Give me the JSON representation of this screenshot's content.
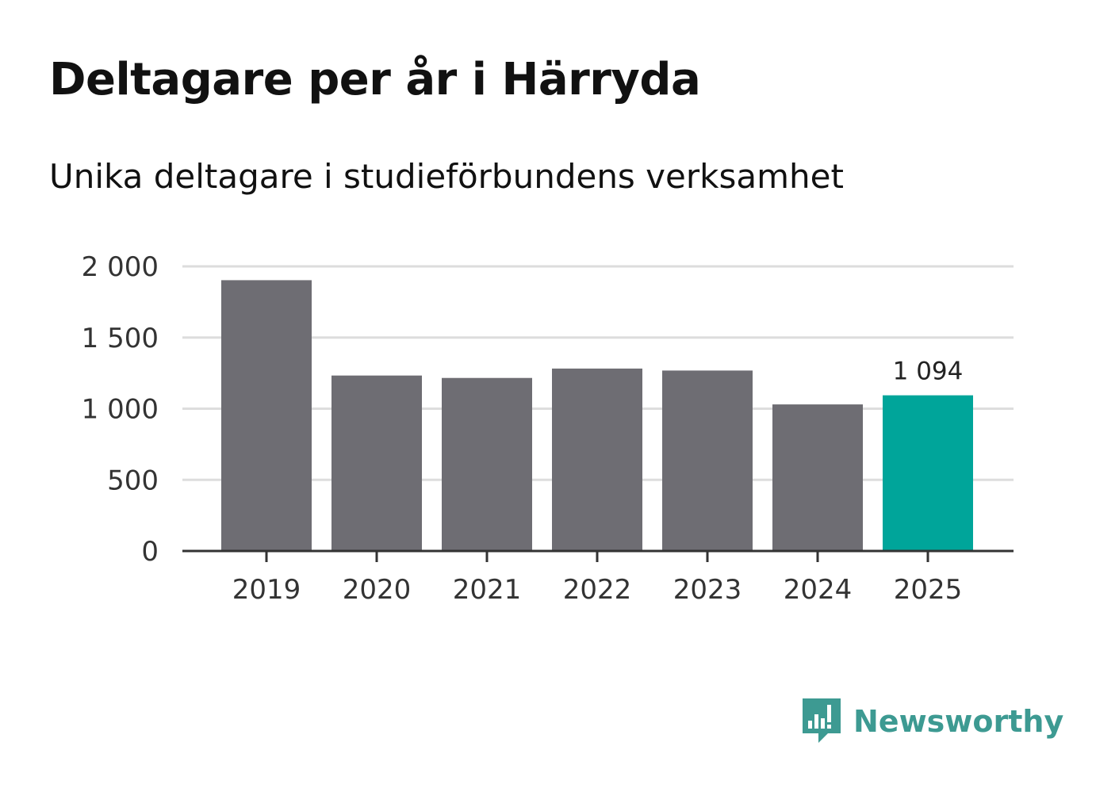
{
  "chart_data": {
    "type": "bar",
    "title": "Deltagare per år i Härryda",
    "subtitle": "Unika deltagare i studieförbundens verksamhet",
    "categories": [
      "2019",
      "2020",
      "2021",
      "2022",
      "2023",
      "2024",
      "2025"
    ],
    "values": [
      1903,
      1233,
      1216,
      1282,
      1268,
      1030,
      1094
    ],
    "ylim": [
      0,
      2000
    ],
    "yticks": [
      0,
      500,
      1000,
      1500,
      2000
    ],
    "ytick_labels": [
      "0",
      "500",
      "1 000",
      "1 500",
      "2 000"
    ],
    "data_labels": [
      {
        "index": 6,
        "text": "1 094"
      }
    ],
    "xlabel": "",
    "ylabel": "",
    "grid": true,
    "highlight_index": 6,
    "colors": {
      "bar": "#6e6d73",
      "highlight": "#00a59a",
      "grid": "#dddddd",
      "axis": "#333333"
    }
  },
  "brand": {
    "name": "Newsworthy",
    "icon": "newsworthy-logo-icon"
  }
}
